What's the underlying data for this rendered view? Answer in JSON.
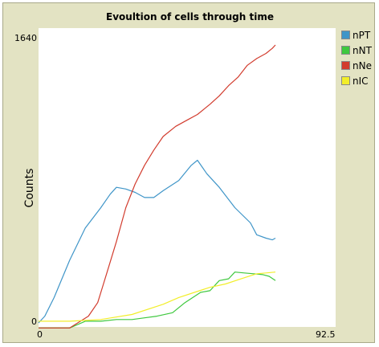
{
  "chart_data": {
    "type": "line",
    "title": "Evoultion of cells through time",
    "xlabel": "",
    "ylabel": "Counts",
    "xlim": [
      0,
      92.5
    ],
    "ylim": [
      0,
      1640
    ],
    "x_tick_labels": [
      "0",
      "92.5"
    ],
    "y_tick_labels": [
      "0",
      "1640"
    ],
    "grid": false,
    "legend_position": "right",
    "series": [
      {
        "name": "nPT",
        "color": "#3f95c8",
        "points": [
          [
            0,
            0
          ],
          [
            2,
            40
          ],
          [
            5,
            150
          ],
          [
            10,
            370
          ],
          [
            15,
            560
          ],
          [
            20,
            680
          ],
          [
            23,
            760
          ],
          [
            25,
            800
          ],
          [
            28,
            790
          ],
          [
            31,
            770
          ],
          [
            34,
            740
          ],
          [
            37,
            740
          ],
          [
            40,
            780
          ],
          [
            45,
            840
          ],
          [
            49,
            930
          ],
          [
            51,
            960
          ],
          [
            54,
            880
          ],
          [
            58,
            800
          ],
          [
            63,
            680
          ],
          [
            68,
            590
          ],
          [
            70,
            520
          ],
          [
            73,
            500
          ],
          [
            75,
            490
          ],
          [
            76,
            500
          ]
        ]
      },
      {
        "name": "nNT",
        "color": "#3ec83e",
        "points": [
          [
            0,
            -30
          ],
          [
            10,
            -30
          ],
          [
            15,
            10
          ],
          [
            20,
            10
          ],
          [
            25,
            20
          ],
          [
            30,
            20
          ],
          [
            34,
            30
          ],
          [
            38,
            40
          ],
          [
            43,
            60
          ],
          [
            47,
            120
          ],
          [
            52,
            180
          ],
          [
            55,
            190
          ],
          [
            58,
            250
          ],
          [
            61,
            260
          ],
          [
            63,
            300
          ],
          [
            66,
            295
          ],
          [
            69,
            290
          ],
          [
            72,
            285
          ],
          [
            74,
            275
          ],
          [
            76,
            250
          ]
        ]
      },
      {
        "name": "nNe",
        "color": "#d23c2e",
        "points": [
          [
            0,
            -30
          ],
          [
            10,
            -30
          ],
          [
            16,
            40
          ],
          [
            19,
            120
          ],
          [
            22,
            300
          ],
          [
            25,
            480
          ],
          [
            28,
            680
          ],
          [
            31,
            820
          ],
          [
            34,
            930
          ],
          [
            37,
            1020
          ],
          [
            40,
            1100
          ],
          [
            44,
            1160
          ],
          [
            48,
            1200
          ],
          [
            51,
            1230
          ],
          [
            55,
            1290
          ],
          [
            58,
            1340
          ],
          [
            61,
            1400
          ],
          [
            64,
            1450
          ],
          [
            67,
            1520
          ],
          [
            70,
            1560
          ],
          [
            73,
            1590
          ],
          [
            75,
            1620
          ],
          [
            76,
            1640
          ]
        ]
      },
      {
        "name": "nIC",
        "color": "#f2ee2a",
        "points": [
          [
            0,
            10
          ],
          [
            10,
            10
          ],
          [
            20,
            20
          ],
          [
            30,
            50
          ],
          [
            40,
            110
          ],
          [
            45,
            150
          ],
          [
            50,
            180
          ],
          [
            55,
            210
          ],
          [
            60,
            230
          ],
          [
            65,
            260
          ],
          [
            70,
            290
          ],
          [
            73,
            295
          ],
          [
            76,
            300
          ]
        ]
      }
    ]
  }
}
